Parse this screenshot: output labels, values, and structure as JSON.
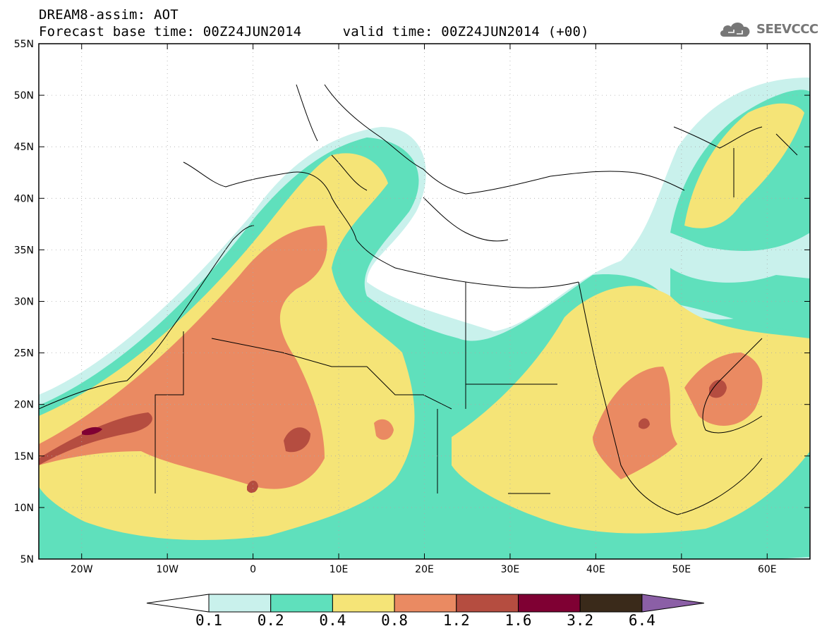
{
  "header": {
    "title_line1": "DREAM8-assim: AOT",
    "title_line2": "Forecast base time: 00Z24JUN2014     valid time: 00Z24JUN2014 (+00)"
  },
  "logo": {
    "text": "SEEVCCC",
    "icon": "cloud-icon"
  },
  "map": {
    "lat_labels": [
      "55N",
      "50N",
      "45N",
      "40N",
      "35N",
      "30N",
      "25N",
      "20N",
      "15N",
      "10N",
      "5N"
    ],
    "lon_labels": [
      "20W",
      "10W",
      "0",
      "10E",
      "20E",
      "30E",
      "40E",
      "50E",
      "60E"
    ],
    "gridlines": "dotted"
  },
  "colorbar": {
    "labels": [
      "0.1",
      "0.2",
      "0.4",
      "0.8",
      "1.2",
      "1.6",
      "3.2",
      "6.4"
    ],
    "colors": [
      "#c9f1ec",
      "#5fe0bc",
      "#f5e477",
      "#ea8a62",
      "#b54d40",
      "#7f0033",
      "#3a2a1a",
      "#8b5fa6"
    ],
    "below_color": "#ffffff"
  }
}
